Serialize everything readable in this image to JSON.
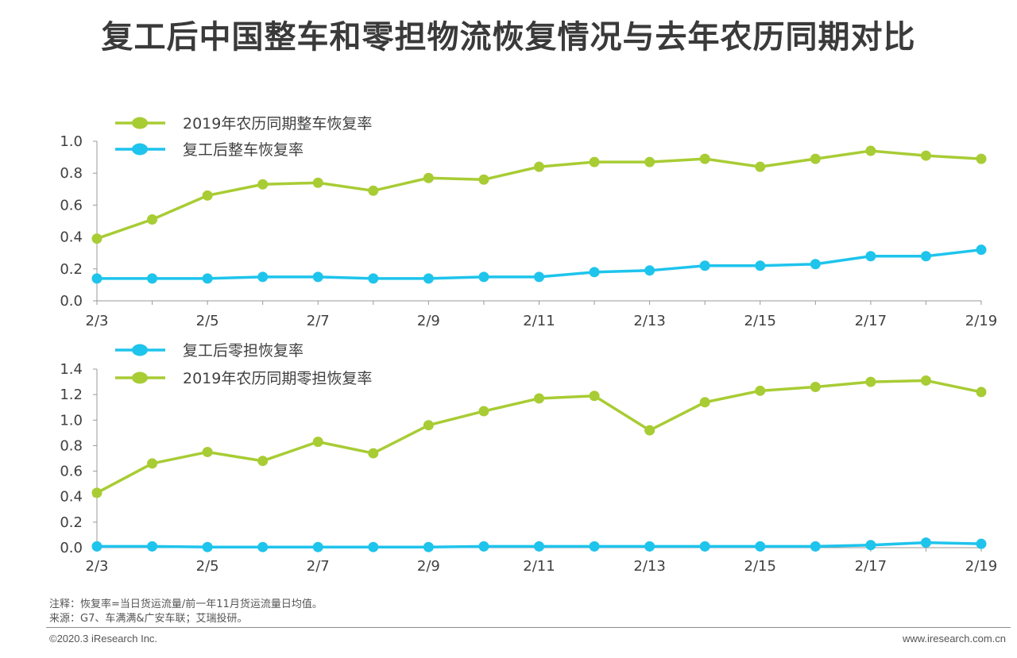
{
  "page": {
    "title": "复工后中国整车和零担物流恢复情况与去年农历同期对比",
    "note": "注释：恢复率=当日货运流量/前一年11月货运流量日均值。",
    "source": "来源：G7、车满满&广安车联；艾瑞投研。",
    "copyright": "©2020.3 iResearch Inc.",
    "website": "www.iresearch.com.cn"
  },
  "colors": {
    "green": "#a8cc34",
    "blue": "#1ec4ec",
    "axis": "#999999"
  },
  "chart_data": [
    {
      "type": "line",
      "title": "",
      "x": [
        "2/3",
        "2/4",
        "2/5",
        "2/6",
        "2/7",
        "2/8",
        "2/9",
        "2/10",
        "2/11",
        "2/12",
        "2/13",
        "2/14",
        "2/15",
        "2/16",
        "2/17",
        "2/18",
        "2/19"
      ],
      "x_tick_labels": [
        "2/3",
        "2/5",
        "2/7",
        "2/9",
        "2/11",
        "2/13",
        "2/15",
        "2/17",
        "2/19"
      ],
      "ylim": [
        0,
        1.0
      ],
      "y_ticks": [
        "0.0",
        "0.2",
        "0.4",
        "0.6",
        "0.8",
        "1.0"
      ],
      "legend_position": "top-left",
      "series": [
        {
          "name": "2019年农历同期整车恢复率",
          "color": "#a8cc34",
          "values": [
            0.39,
            0.51,
            0.66,
            0.73,
            0.74,
            0.69,
            0.77,
            0.76,
            0.84,
            0.87,
            0.87,
            0.89,
            0.84,
            0.89,
            0.94,
            0.91,
            0.89
          ]
        },
        {
          "name": "复工后整车恢复率",
          "color": "#1ec4ec",
          "values": [
            0.14,
            0.14,
            0.14,
            0.15,
            0.15,
            0.14,
            0.14,
            0.15,
            0.15,
            0.18,
            0.19,
            0.22,
            0.22,
            0.23,
            0.28,
            0.28,
            0.32
          ]
        }
      ]
    },
    {
      "type": "line",
      "title": "",
      "x": [
        "2/3",
        "2/4",
        "2/5",
        "2/6",
        "2/7",
        "2/8",
        "2/9",
        "2/10",
        "2/11",
        "2/12",
        "2/13",
        "2/14",
        "2/15",
        "2/16",
        "2/17",
        "2/18",
        "2/19"
      ],
      "x_tick_labels": [
        "2/3",
        "2/5",
        "2/7",
        "2/9",
        "2/11",
        "2/13",
        "2/15",
        "2/17",
        "2/19"
      ],
      "ylim": [
        0,
        1.4
      ],
      "y_ticks": [
        "0.0",
        "0.2",
        "0.4",
        "0.6",
        "0.8",
        "1.0",
        "1.2",
        "1.4"
      ],
      "legend_position": "top-left",
      "series": [
        {
          "name": "复工后零担恢复率",
          "color": "#1ec4ec",
          "values": [
            0.01,
            0.01,
            0.005,
            0.005,
            0.005,
            0.005,
            0.005,
            0.01,
            0.01,
            0.01,
            0.01,
            0.01,
            0.01,
            0.01,
            0.02,
            0.04,
            0.03
          ]
        },
        {
          "name": "2019年农历同期零担恢复率",
          "color": "#a8cc34",
          "values": [
            0.43,
            0.66,
            0.75,
            0.68,
            0.83,
            0.74,
            0.96,
            1.07,
            1.17,
            1.19,
            0.92,
            1.14,
            1.23,
            1.26,
            1.3,
            1.31,
            1.22
          ]
        }
      ]
    }
  ]
}
